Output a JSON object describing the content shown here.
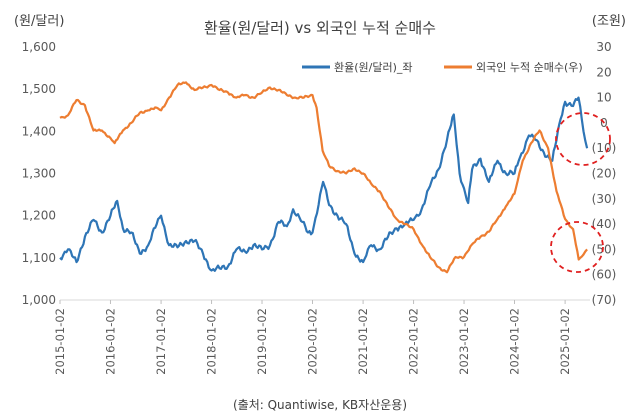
{
  "chart_data": {
    "type": "line",
    "title": "환율(원/달러) vs 외국인 누적 순매수",
    "left_axis_unit": "(원/달러)",
    "right_axis_unit": "(조원)",
    "left_ylim": [
      1000,
      1600
    ],
    "right_ylim": [
      -70,
      30
    ],
    "left_ticks": [
      "1,600",
      "1,500",
      "1,400",
      "1,300",
      "1,200",
      "1,100",
      "1,000"
    ],
    "right_ticks": [
      "30",
      "20",
      "10",
      "0",
      "(10)",
      "(20)",
      "(30)",
      "(40)",
      "(50)",
      "(60)",
      "(70)"
    ],
    "x_ticks": [
      "2015-01-02",
      "2016-01-02",
      "2017-01-02",
      "2018-01-02",
      "2019-01-02",
      "2020-01-02",
      "2021-01-02",
      "2022-01-02",
      "2023-01-02",
      "2024-01-02",
      "2025-01-02"
    ],
    "grid": false,
    "legend_position": "top-right",
    "series": [
      {
        "name": "환율(원/달러)_좌",
        "axis": "left",
        "color": "#2e75b6",
        "points": [
          [
            "2015-01-02",
            1100
          ],
          [
            "2015-03-01",
            1120
          ],
          [
            "2015-05-01",
            1090
          ],
          [
            "2015-07-01",
            1150
          ],
          [
            "2015-09-01",
            1190
          ],
          [
            "2015-11-01",
            1160
          ],
          [
            "2016-01-02",
            1200
          ],
          [
            "2016-02-20",
            1235
          ],
          [
            "2016-04-01",
            1170
          ],
          [
            "2016-06-01",
            1160
          ],
          [
            "2016-08-01",
            1110
          ],
          [
            "2016-10-01",
            1130
          ],
          [
            "2016-12-01",
            1180
          ],
          [
            "2017-01-02",
            1200
          ],
          [
            "2017-03-01",
            1130
          ],
          [
            "2017-05-01",
            1125
          ],
          [
            "2017-07-01",
            1140
          ],
          [
            "2017-09-01",
            1140
          ],
          [
            "2017-11-01",
            1110
          ],
          [
            "2018-01-02",
            1070
          ],
          [
            "2018-03-01",
            1075
          ],
          [
            "2018-05-01",
            1080
          ],
          [
            "2018-07-01",
            1120
          ],
          [
            "2018-09-01",
            1115
          ],
          [
            "2018-11-01",
            1130
          ],
          [
            "2019-01-02",
            1120
          ],
          [
            "2019-03-01",
            1130
          ],
          [
            "2019-05-01",
            1185
          ],
          [
            "2019-07-01",
            1175
          ],
          [
            "2019-08-15",
            1215
          ],
          [
            "2019-10-01",
            1195
          ],
          [
            "2019-12-01",
            1160
          ],
          [
            "2020-01-02",
            1160
          ],
          [
            "2020-03-19",
            1280
          ],
          [
            "2020-05-01",
            1225
          ],
          [
            "2020-07-01",
            1200
          ],
          [
            "2020-09-01",
            1180
          ],
          [
            "2020-11-01",
            1110
          ],
          [
            "2021-01-02",
            1090
          ],
          [
            "2021-03-01",
            1130
          ],
          [
            "2021-05-01",
            1120
          ],
          [
            "2021-07-01",
            1150
          ],
          [
            "2021-09-01",
            1170
          ],
          [
            "2021-11-01",
            1180
          ],
          [
            "2022-01-02",
            1190
          ],
          [
            "2022-03-01",
            1215
          ],
          [
            "2022-05-01",
            1270
          ],
          [
            "2022-07-01",
            1310
          ],
          [
            "2022-09-01",
            1380
          ],
          [
            "2022-10-20",
            1440
          ],
          [
            "2022-12-01",
            1300
          ],
          [
            "2023-01-02",
            1265
          ],
          [
            "2023-02-01",
            1230
          ],
          [
            "2023-03-01",
            1310
          ],
          [
            "2023-05-01",
            1335
          ],
          [
            "2023-07-01",
            1280
          ],
          [
            "2023-09-01",
            1330
          ],
          [
            "2023-11-01",
            1300
          ],
          [
            "2024-01-02",
            1300
          ],
          [
            "2024-02-01",
            1330
          ],
          [
            "2024-04-15",
            1390
          ],
          [
            "2024-06-01",
            1380
          ],
          [
            "2024-08-01",
            1350
          ],
          [
            "2024-10-01",
            1330
          ],
          [
            "2024-12-01",
            1430
          ],
          [
            "2025-01-02",
            1470
          ],
          [
            "2025-03-01",
            1460
          ],
          [
            "2025-04-09",
            1480
          ],
          [
            "2025-05-15",
            1400
          ],
          [
            "2025-06-10",
            1360
          ]
        ]
      },
      {
        "name": "외국인 누적 순매수(우)",
        "axis": "right",
        "color": "#ed7d31",
        "points": [
          [
            "2015-01-02",
            2
          ],
          [
            "2015-03-01",
            3
          ],
          [
            "2015-05-01",
            9
          ],
          [
            "2015-07-01",
            7
          ],
          [
            "2015-09-01",
            -3
          ],
          [
            "2015-11-01",
            -3
          ],
          [
            "2016-01-02",
            -6
          ],
          [
            "2016-02-01",
            -8
          ],
          [
            "2016-04-01",
            -3
          ],
          [
            "2016-06-01",
            0
          ],
          [
            "2016-08-01",
            4
          ],
          [
            "2016-10-01",
            5
          ],
          [
            "2016-12-01",
            6
          ],
          [
            "2017-01-02",
            5
          ],
          [
            "2017-03-01",
            10
          ],
          [
            "2017-05-01",
            15
          ],
          [
            "2017-07-01",
            16
          ],
          [
            "2017-09-01",
            13
          ],
          [
            "2017-11-01",
            14
          ],
          [
            "2018-01-02",
            15
          ],
          [
            "2018-03-01",
            13
          ],
          [
            "2018-05-01",
            12
          ],
          [
            "2018-07-01",
            10
          ],
          [
            "2018-09-01",
            11
          ],
          [
            "2018-11-01",
            10
          ],
          [
            "2019-01-02",
            12
          ],
          [
            "2019-03-01",
            14
          ],
          [
            "2019-05-01",
            13
          ],
          [
            "2019-07-01",
            11
          ],
          [
            "2019-09-01",
            10
          ],
          [
            "2019-11-01",
            10
          ],
          [
            "2020-01-02",
            11
          ],
          [
            "2020-02-01",
            6
          ],
          [
            "2020-03-15",
            -11
          ],
          [
            "2020-05-01",
            -17
          ],
          [
            "2020-07-01",
            -19
          ],
          [
            "2020-09-01",
            -20
          ],
          [
            "2020-11-01",
            -18
          ],
          [
            "2021-01-02",
            -20
          ],
          [
            "2021-03-01",
            -24
          ],
          [
            "2021-05-01",
            -27
          ],
          [
            "2021-07-01",
            -33
          ],
          [
            "2021-09-01",
            -38
          ],
          [
            "2021-11-01",
            -40
          ],
          [
            "2022-01-02",
            -42
          ],
          [
            "2022-03-01",
            -48
          ],
          [
            "2022-05-01",
            -53
          ],
          [
            "2022-07-01",
            -57
          ],
          [
            "2022-09-01",
            -59
          ],
          [
            "2022-11-01",
            -53
          ],
          [
            "2023-01-02",
            -53
          ],
          [
            "2023-03-01",
            -48
          ],
          [
            "2023-05-01",
            -45
          ],
          [
            "2023-07-01",
            -43
          ],
          [
            "2023-09-01",
            -38
          ],
          [
            "2023-11-01",
            -33
          ],
          [
            "2024-01-02",
            -28
          ],
          [
            "2024-03-01",
            -15
          ],
          [
            "2024-05-01",
            -8
          ],
          [
            "2024-07-01",
            -3
          ],
          [
            "2024-09-01",
            -10
          ],
          [
            "2024-11-01",
            -27
          ],
          [
            "2025-01-02",
            -38
          ],
          [
            "2025-03-01",
            -42
          ],
          [
            "2025-04-10",
            -54
          ],
          [
            "2025-05-15",
            -52
          ],
          [
            "2025-06-10",
            -50
          ]
        ]
      }
    ],
    "annotations": [
      "dashed-red-ellipse around 환율 end (2025)",
      "dashed-red-ellipse around 외국인 누적 순매수 end (2025)"
    ],
    "annotation_color": "#e02020"
  },
  "footer": {
    "source": "(출처: Quantiwise, KB자산운용)"
  }
}
